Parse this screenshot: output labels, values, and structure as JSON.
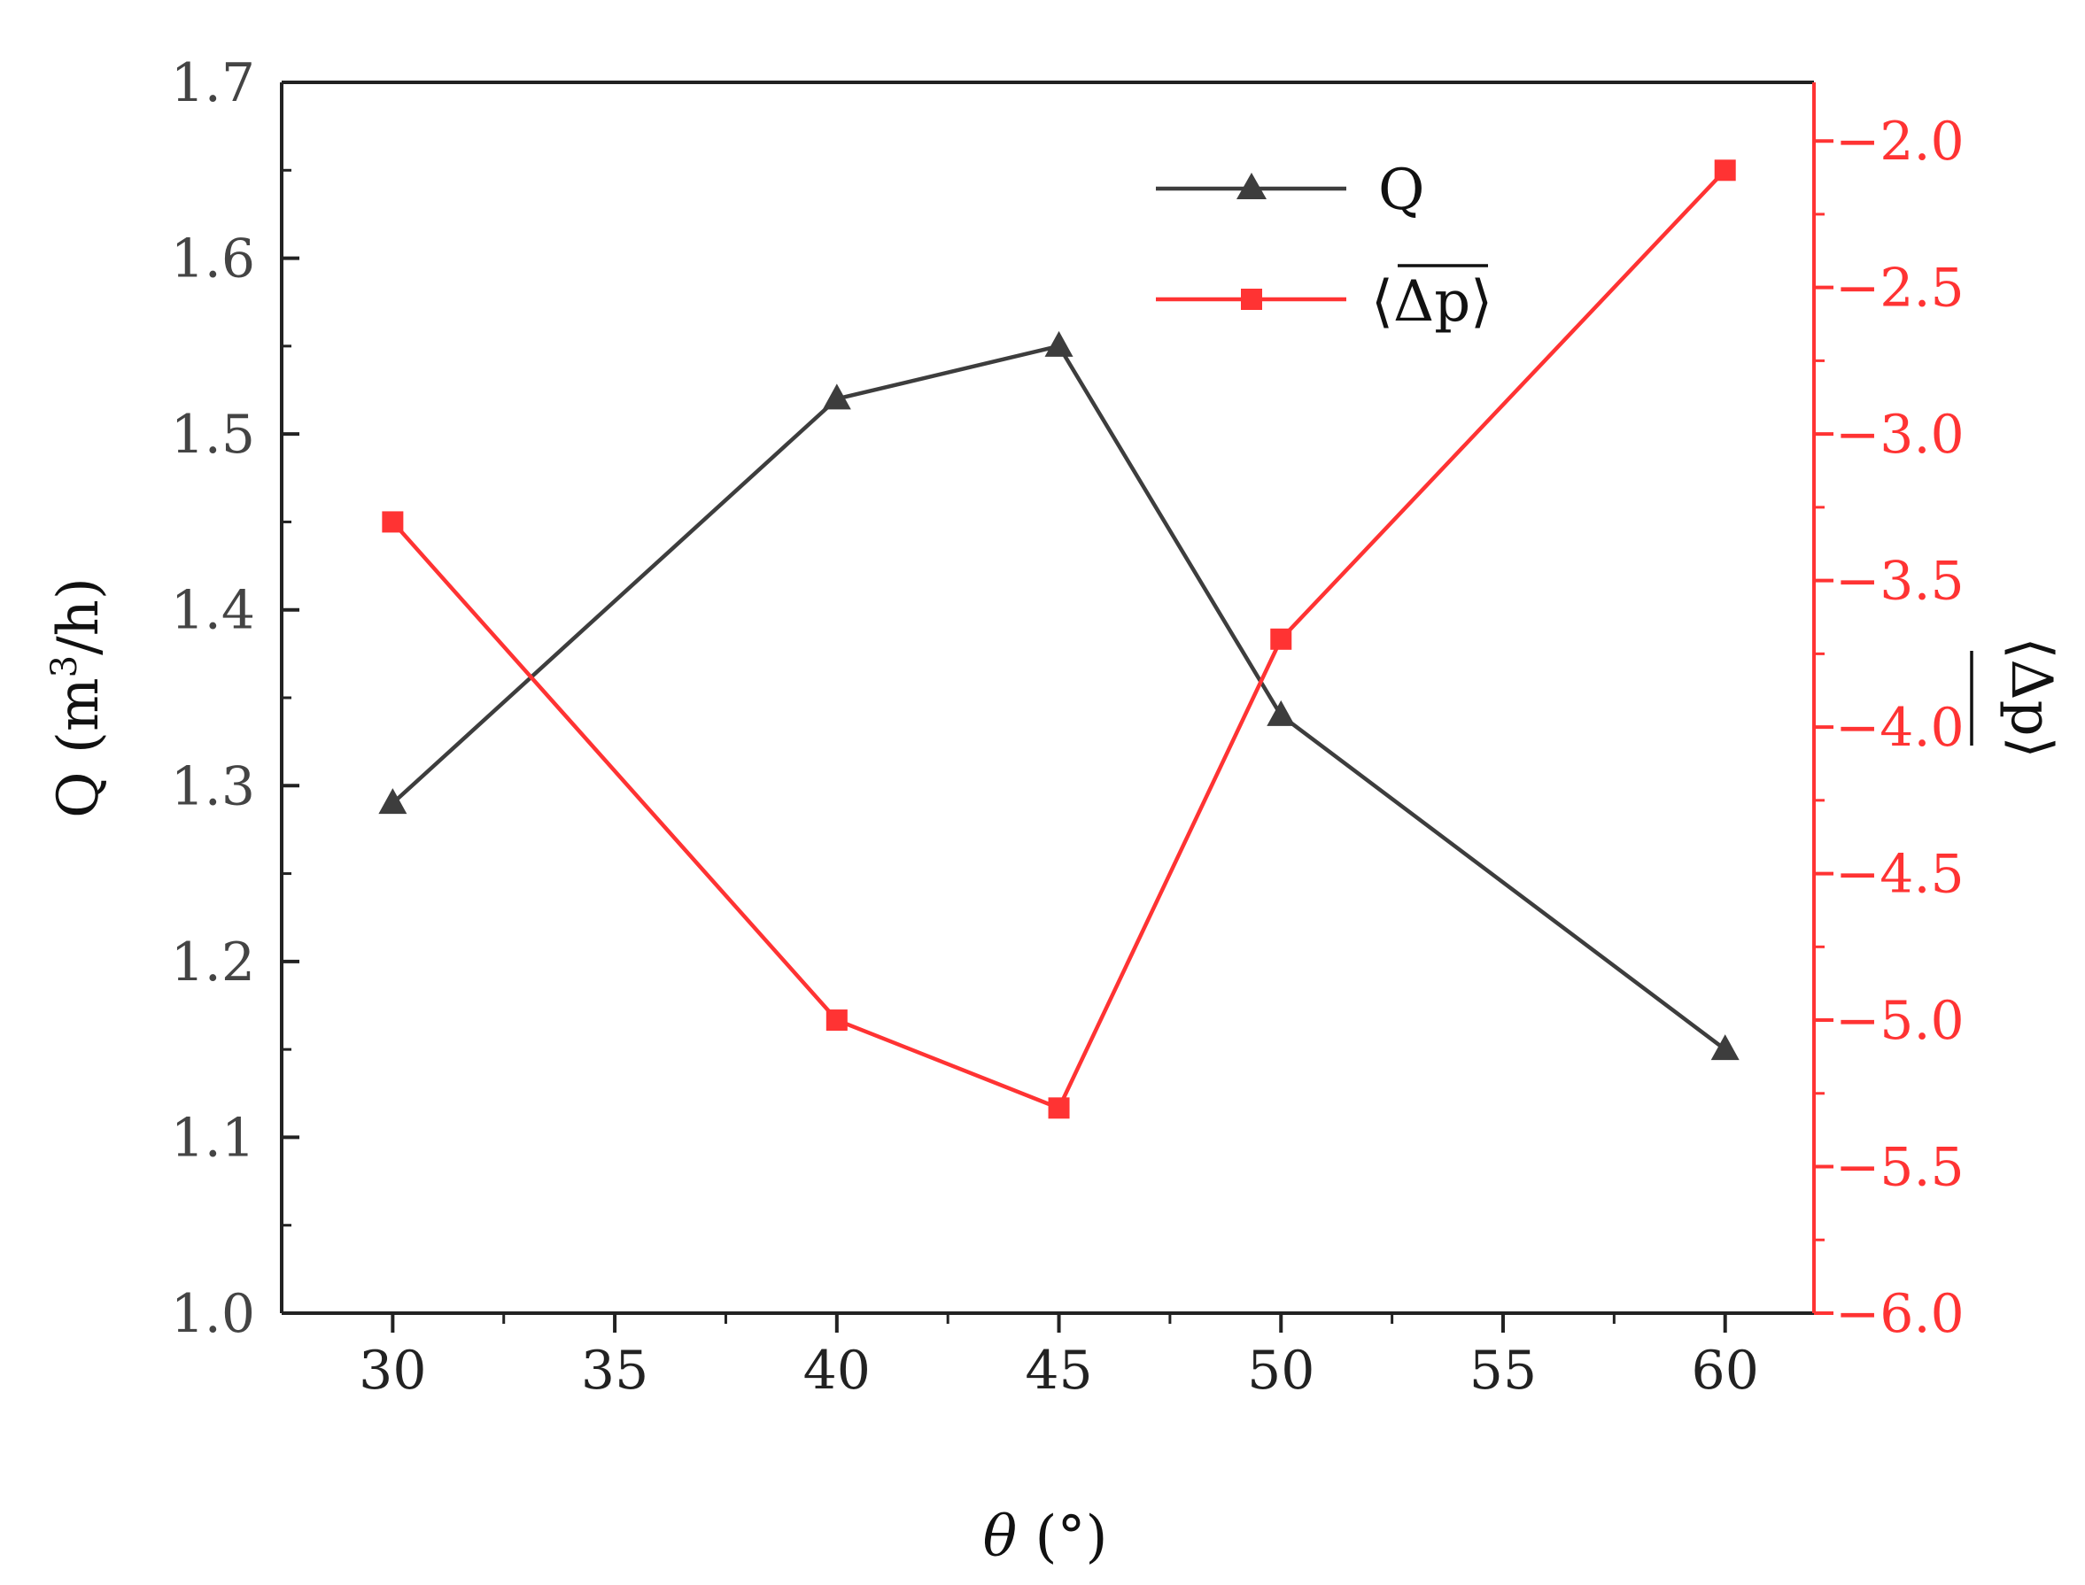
{
  "chart_data": {
    "type": "line",
    "x": [
      30,
      40,
      45,
      50,
      60
    ],
    "xlabel": {
      "symbol": "θ",
      "rest": " (°)"
    },
    "xlim": [
      27.5,
      62
    ],
    "xticks": [
      30,
      35,
      40,
      45,
      50,
      55,
      60
    ],
    "ylabel_left": {
      "text": "Q (m",
      "sup": "3",
      "tail": "/h)"
    },
    "ylim_left": [
      1.0,
      1.7
    ],
    "yticks_left": [
      "1.0",
      "1.1",
      "1.2",
      "1.3",
      "1.4",
      "1.5",
      "1.6",
      "1.7"
    ],
    "ylabel_right": "⟨Δp⟩",
    "ylim_right": [
      -6.0,
      -1.8
    ],
    "yticks_right": [
      "−6.0",
      "−5.5",
      "−5.0",
      "−4.5",
      "−4.0",
      "−3.5",
      "−3.0",
      "−2.5",
      "−2.0"
    ],
    "series": [
      {
        "name": "Q",
        "axis": "left",
        "marker": "triangle",
        "color": "#3d3d3d",
        "values": [
          1.29,
          1.52,
          1.55,
          1.34,
          1.15
        ]
      },
      {
        "name": "⟨Δp⟩",
        "axis": "right",
        "marker": "square",
        "color": "#ff3333",
        "values": [
          -3.3,
          -5.0,
          -5.3,
          -3.7,
          -2.1
        ]
      }
    ],
    "legend": {
      "position": "top-right"
    },
    "colors": {
      "left_axis": "#111111",
      "right_axis": "#ff3333"
    }
  }
}
